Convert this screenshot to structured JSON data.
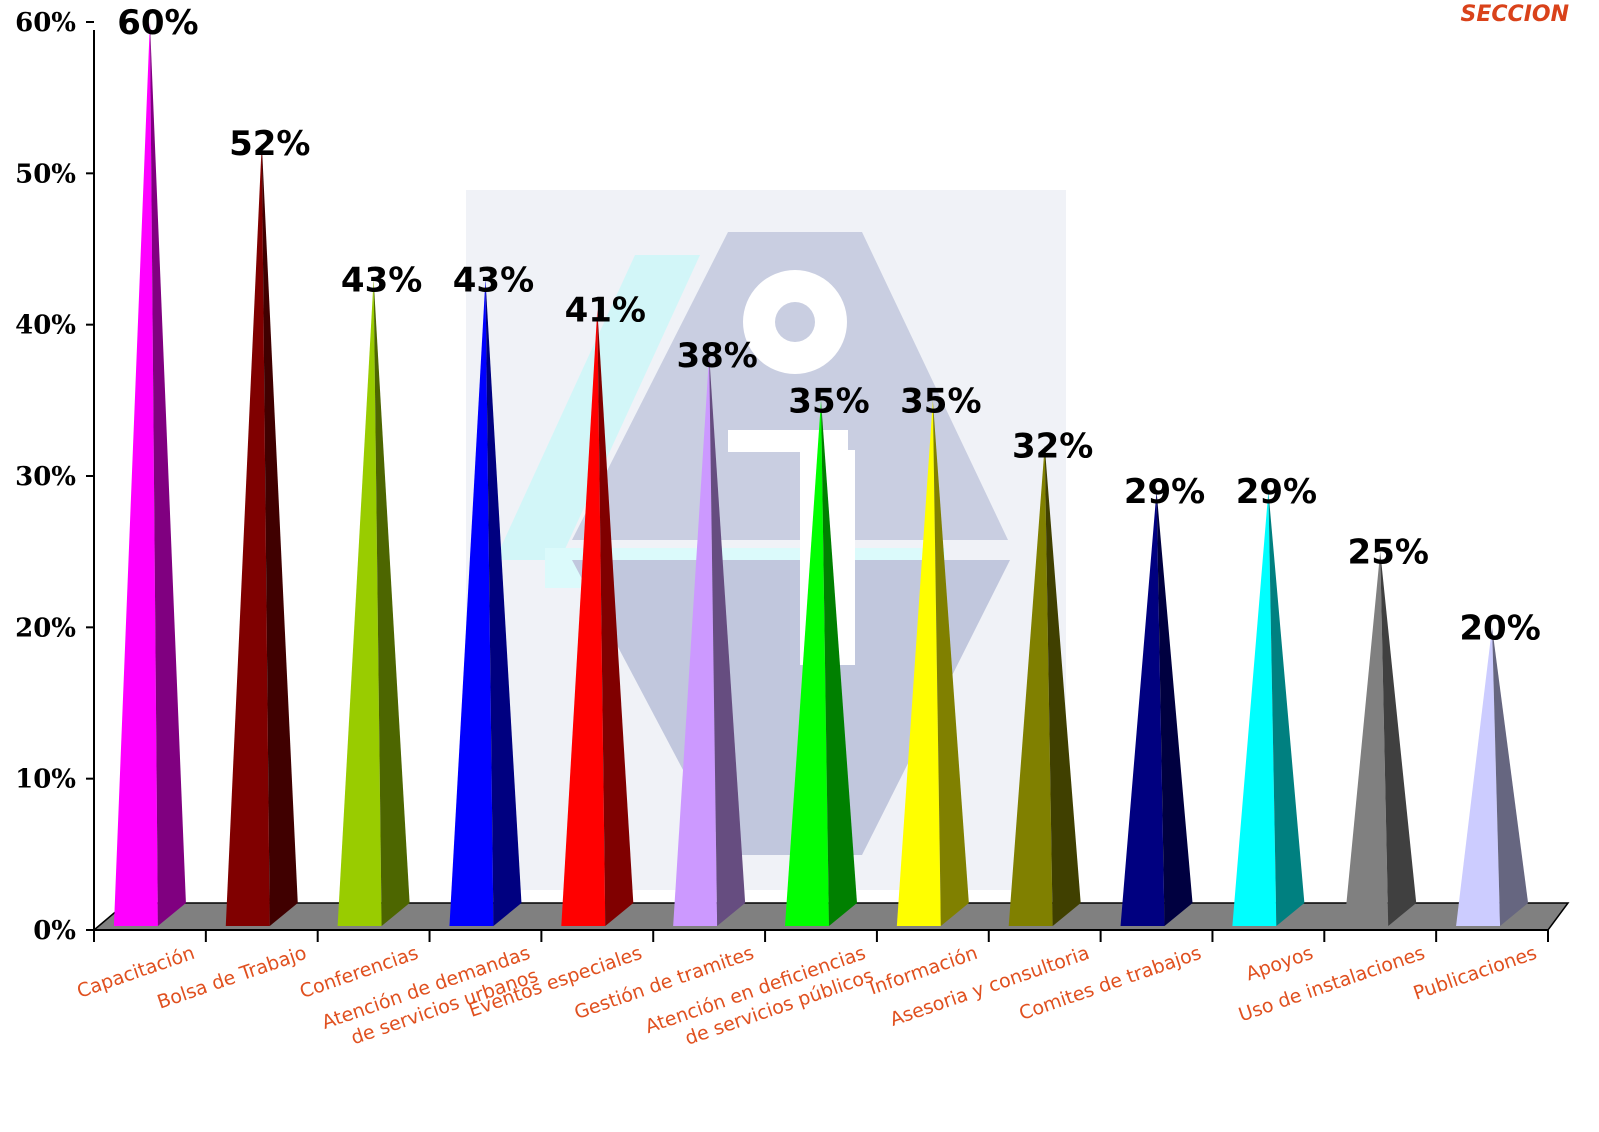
{
  "header": {
    "section_label": "SECCION"
  },
  "colors": {
    "label": "#e0501f",
    "section": "#d9421a",
    "floor": "#808080"
  },
  "chart_data": {
    "type": "bar",
    "ylim": [
      0,
      60
    ],
    "yticks": [
      0,
      10,
      20,
      30,
      40,
      50,
      60
    ],
    "ytick_labels": [
      "0%",
      "10%",
      "20%",
      "30%",
      "40%",
      "50%",
      "60%"
    ],
    "categories": [
      [
        "Capacitación"
      ],
      [
        "Bolsa de Trabajo"
      ],
      [
        "Conferencias"
      ],
      [
        "Atención de demandas",
        "de servicios urbanos"
      ],
      [
        "Eventos especiales"
      ],
      [
        "Gestión de tramites"
      ],
      [
        "Atención en deficiencias",
        "de servicios públicos"
      ],
      [
        "Información"
      ],
      [
        "Asesoria y consultoria"
      ],
      [
        "Comites de trabajos"
      ],
      [
        "Apoyos"
      ],
      [
        "Uso de instalaciones"
      ],
      [
        "Publicaciones"
      ]
    ],
    "values": [
      60,
      52,
      43,
      43,
      41,
      38,
      35,
      35,
      32,
      29,
      29,
      25,
      20
    ],
    "value_labels": [
      "60%",
      "52%",
      "43%",
      "43%",
      "41%",
      "38%",
      "35%",
      "35%",
      "32%",
      "29%",
      "29%",
      "25%",
      "20%"
    ],
    "bar_colors": [
      [
        "#ff00ff",
        "#800080"
      ],
      [
        "#800000",
        "#400000"
      ],
      [
        "#99cc00",
        "#4d6600"
      ],
      [
        "#0000ff",
        "#000080"
      ],
      [
        "#ff0000",
        "#800000"
      ],
      [
        "#cc99ff",
        "#664d80"
      ],
      [
        "#00ff00",
        "#008000"
      ],
      [
        "#ffff00",
        "#808000"
      ],
      [
        "#808000",
        "#404000"
      ],
      [
        "#000080",
        "#000040"
      ],
      [
        "#00ffff",
        "#008080"
      ],
      [
        "#808080",
        "#404040"
      ],
      [
        "#ccccff",
        "#666680"
      ]
    ]
  }
}
